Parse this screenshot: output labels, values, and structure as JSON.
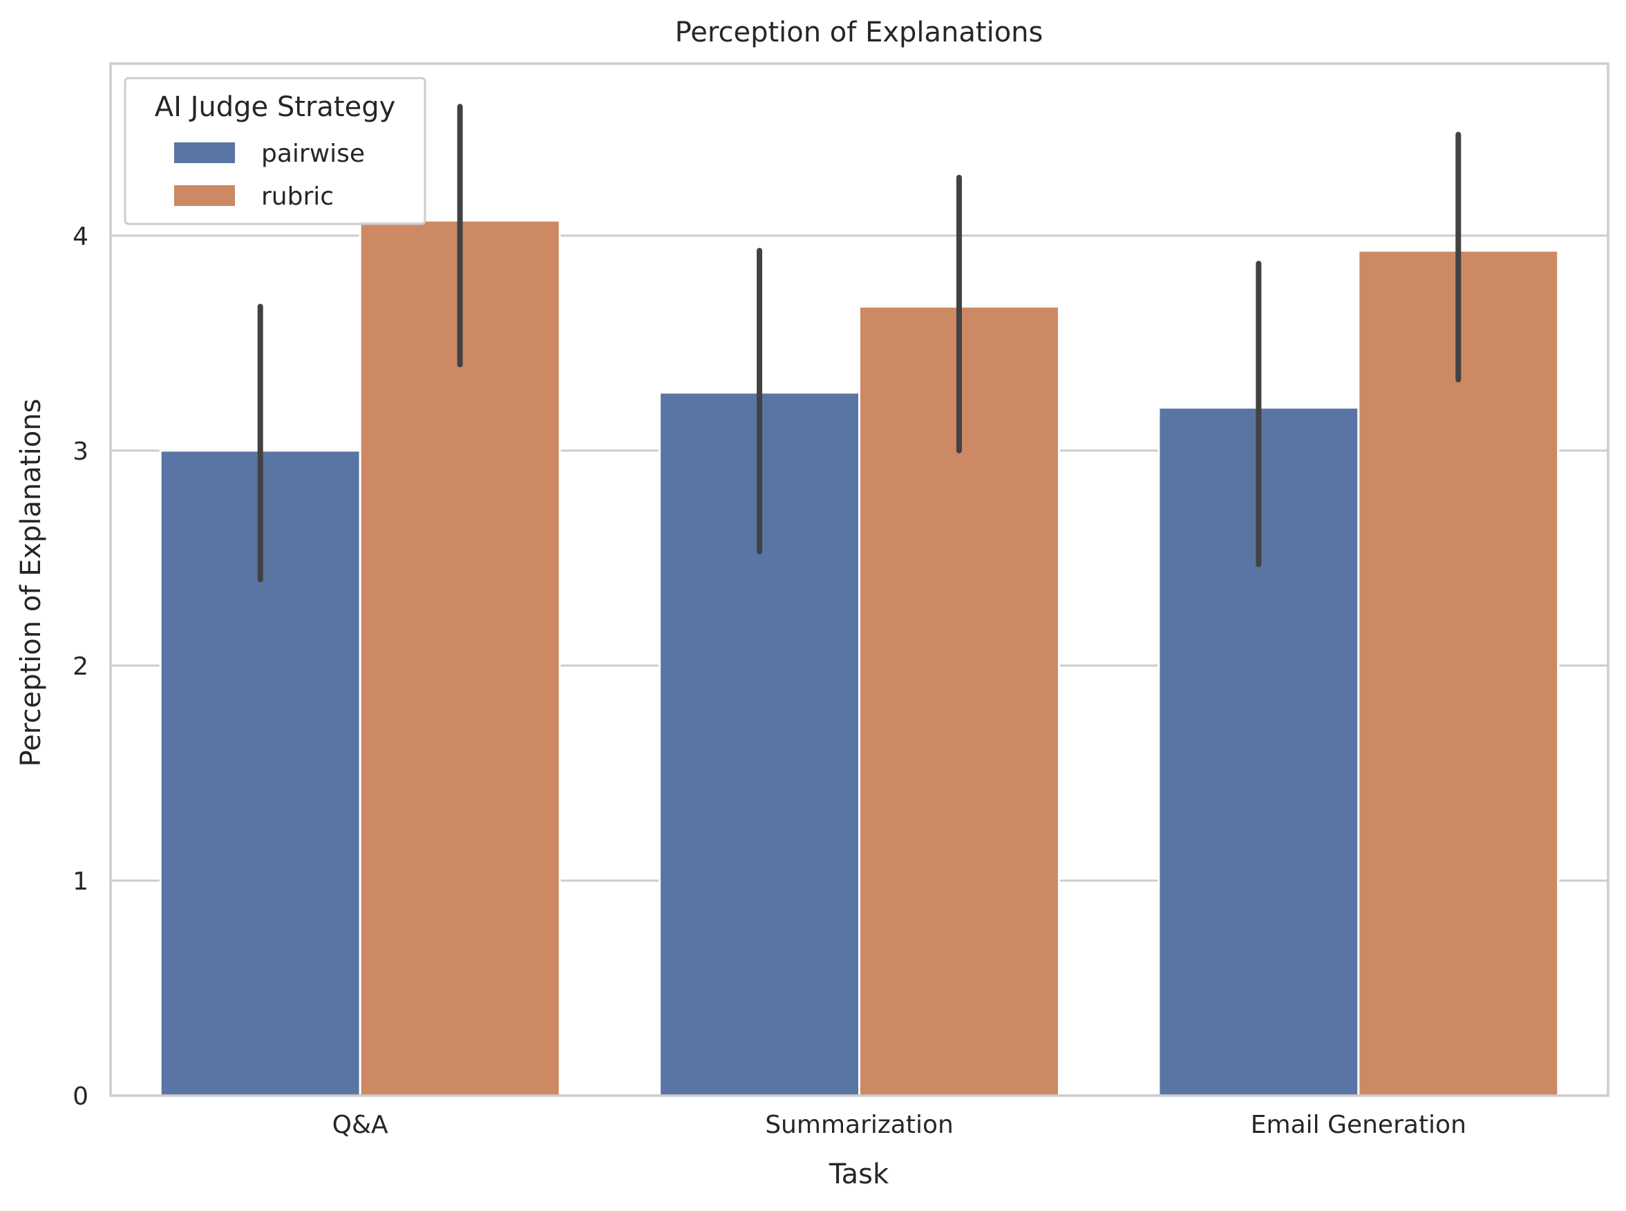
{
  "chart_data": {
    "type": "bar",
    "title": "Perception of Explanations",
    "xlabel": "Task",
    "ylabel": "Perception of Explanations",
    "categories": [
      "Q&A",
      "Summarization",
      "Email Generation"
    ],
    "series": [
      {
        "name": "pairwise",
        "color": "#5975a4",
        "values": [
          3.0,
          3.27,
          3.2
        ],
        "ci_low": [
          2.4,
          2.53,
          2.47
        ],
        "ci_high": [
          3.67,
          3.93,
          3.87
        ]
      },
      {
        "name": "rubric",
        "color": "#cc8963",
        "values": [
          4.07,
          3.67,
          3.93
        ],
        "ci_low": [
          3.4,
          3.0,
          3.33
        ],
        "ci_high": [
          4.6,
          4.27,
          4.47
        ]
      }
    ],
    "ylim": [
      0,
      4.8
    ],
    "yticks": [
      0,
      1,
      2,
      3,
      4
    ],
    "grid": "horizontal",
    "legend": {
      "title": "AI Judge Strategy",
      "placement": "top-left"
    }
  }
}
